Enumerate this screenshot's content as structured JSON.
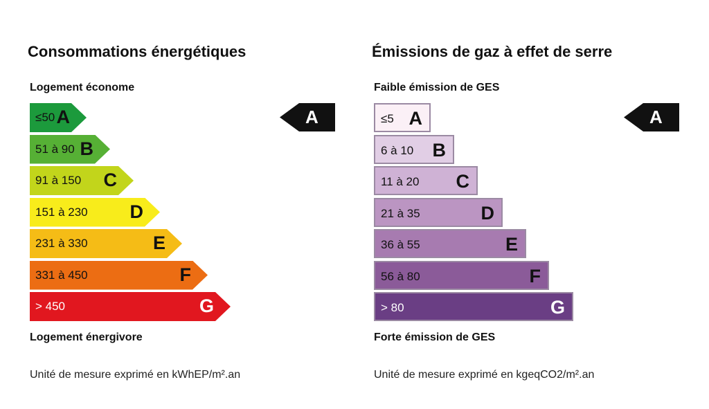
{
  "energy": {
    "title": "Consommations énergétiques",
    "top_label": "Logement économe",
    "bottom_label": "Logement énergivore",
    "unit": "Unité de mesure exprimé en kWhEP/m².an",
    "indicator": "A",
    "classes": [
      {
        "range": "≤50",
        "letter": "A",
        "color": "#1c9a3c",
        "text_color": "#111111"
      },
      {
        "range": "51 à 90",
        "letter": "B",
        "color": "#56b035",
        "text_color": "#111111"
      },
      {
        "range": "91 à 150",
        "letter": "C",
        "color": "#c2d51b",
        "text_color": "#111111"
      },
      {
        "range": "151 à 230",
        "letter": "D",
        "color": "#f8ec1b",
        "text_color": "#111111"
      },
      {
        "range": "231 à 330",
        "letter": "E",
        "color": "#f5bc16",
        "text_color": "#111111"
      },
      {
        "range": "331 à 450",
        "letter": "F",
        "color": "#ec6d13",
        "text_color": "#111111"
      },
      {
        "range": "> 450",
        "letter": "G",
        "color": "#e1171f",
        "text_color": "#ffffff"
      }
    ]
  },
  "ges": {
    "title": "Émissions de gaz à effet de serre",
    "top_label": "Faible émission de GES",
    "bottom_label": "Forte émission de GES",
    "unit": "Unité de mesure exprimé en kgeqCO2/m².an",
    "indicator": "A",
    "classes": [
      {
        "range": "≤5",
        "letter": "A",
        "color": "#fbf0f6",
        "text_color": "#111111"
      },
      {
        "range": "6 à 10",
        "letter": "B",
        "color": "#e1cee5",
        "text_color": "#111111"
      },
      {
        "range": "11 à 20",
        "letter": "C",
        "color": "#cfb2d5",
        "text_color": "#111111"
      },
      {
        "range": "21 à 35",
        "letter": "D",
        "color": "#bb95c2",
        "text_color": "#111111"
      },
      {
        "range": "36 à 55",
        "letter": "E",
        "color": "#a77bb0",
        "text_color": "#111111"
      },
      {
        "range": "56 à 80",
        "letter": "F",
        "color": "#8b5b99",
        "text_color": "#111111"
      },
      {
        "range": "> 80",
        "letter": "G",
        "color": "#6a3e84",
        "text_color": "#ffffff"
      }
    ]
  }
}
